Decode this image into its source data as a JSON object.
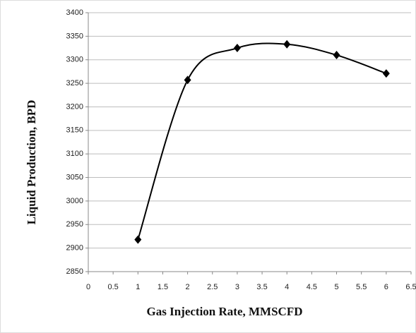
{
  "chart_data": {
    "type": "line",
    "x_label": "Gas Injection Rate, MMSCFD",
    "y_label": "Liquid Production, BPD",
    "x": [
      1,
      2,
      3,
      4,
      5,
      6
    ],
    "series": [
      {
        "name": "Liquid Production",
        "color": "#000000",
        "values": [
          2918,
          3257,
          3325,
          3333,
          3310,
          3271
        ]
      }
    ],
    "xlim": [
      0,
      6.5
    ],
    "xticks": [
      0,
      0.5,
      1,
      1.5,
      2,
      2.5,
      3,
      3.5,
      4,
      4.5,
      5,
      5.5,
      6,
      6.5
    ],
    "ylim": [
      2850,
      3400
    ],
    "yticks": [
      2850,
      2900,
      2950,
      3000,
      3050,
      3100,
      3150,
      3200,
      3250,
      3300,
      3350,
      3400
    ],
    "grid": true,
    "smooth": true
  }
}
